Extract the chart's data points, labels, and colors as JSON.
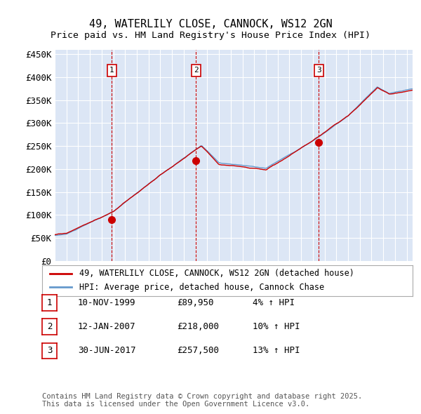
{
  "title1": "49, WATERLILY CLOSE, CANNOCK, WS12 2GN",
  "title2": "Price paid vs. HM Land Registry's House Price Index (HPI)",
  "ylabel_ticks": [
    "£0",
    "£50K",
    "£100K",
    "£150K",
    "£200K",
    "£250K",
    "£300K",
    "£350K",
    "£400K",
    "£450K"
  ],
  "ytick_values": [
    0,
    50000,
    100000,
    150000,
    200000,
    250000,
    300000,
    350000,
    400000,
    450000
  ],
  "ylim": [
    0,
    460000
  ],
  "xlim_start": 1995.0,
  "xlim_end": 2025.5,
  "background_color": "#dce6f5",
  "plot_bg_color": "#dce6f5",
  "line_color_red": "#cc0000",
  "line_color_blue": "#6699cc",
  "grid_color": "#ffffff",
  "sale_marker_color": "#cc0000",
  "sale_dates": [
    1999.86,
    2007.04,
    2017.5
  ],
  "sale_prices": [
    89950,
    218000,
    257500
  ],
  "sale_labels": [
    "1",
    "2",
    "3"
  ],
  "sale_annotations": [
    "10-NOV-1999",
    "12-JAN-2007",
    "30-JUN-2017"
  ],
  "sale_prices_str": [
    "£89,950",
    "£218,000",
    "£257,500"
  ],
  "sale_pct": [
    "4% ↑ HPI",
    "10% ↑ HPI",
    "13% ↑ HPI"
  ],
  "legend_label_red": "49, WATERLILY CLOSE, CANNOCK, WS12 2GN (detached house)",
  "legend_label_blue": "HPI: Average price, detached house, Cannock Chase",
  "footnote": "Contains HM Land Registry data © Crown copyright and database right 2025.\nThis data is licensed under the Open Government Licence v3.0.",
  "title_fontsize": 11,
  "tick_fontsize": 9,
  "legend_fontsize": 9
}
